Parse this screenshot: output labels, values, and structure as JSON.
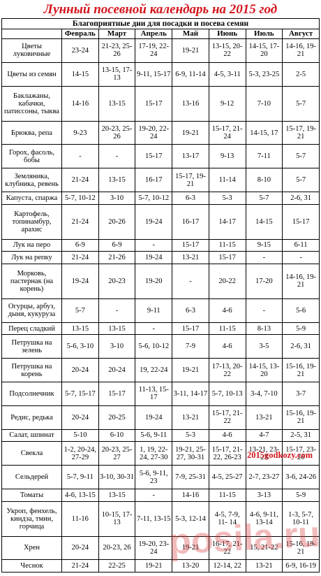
{
  "header": {
    "title": "Лунный посевной календарь на 2015 год",
    "subtitle": "Благоприятные дни для посадки и посева семян"
  },
  "table": {
    "columns": [
      "Февраль",
      "Март",
      "Апрель",
      "Май",
      "Июнь",
      "Июль",
      "Август"
    ],
    "rows": [
      [
        "Цветы луковичные",
        "23-24",
        "21-23, 25-26",
        "17-19, 22-24",
        "19-21",
        "13-15, 20-22",
        "14-15, 17-20",
        "14-16, 19-21"
      ],
      [
        "Цветы из семян",
        "14-15",
        "13-15, 17-13",
        "9-11, 15-17",
        "6-9, 11-14",
        "4-5, 3-11",
        "5-3, 23-25",
        "2-5"
      ],
      [
        "Баклажаны, кабачки, патиссоны, тыква",
        "14-16",
        "13-15",
        "15-17",
        "13-16",
        "9-12",
        "7-10",
        "5-7"
      ],
      [
        "Брюква, репа",
        "9-23",
        "20-23, 25-26",
        "19-20, 22-24",
        "19-21",
        "15-17, 21-24",
        "14-15, 17",
        "15-17, 19-21"
      ],
      [
        "Горох, фасоль, бобы",
        "-",
        "-",
        "15-17",
        "13-17",
        "9-13",
        "7-11",
        "5-7"
      ],
      [
        "Земляника, клубника, ревень",
        "21-24",
        "13-15",
        "16-17",
        "15-17, 19-21",
        "11-14",
        "8-10",
        "5-7"
      ],
      [
        "Капуста, спаржа",
        "5-7, 10-12",
        "3-10",
        "5-7, 10-12",
        "6-3",
        "5-3",
        "5-7",
        "2-6, 31"
      ],
      [
        "Картофель, топинамбур, арахис",
        "21-24",
        "20-26",
        "19-24",
        "16-17",
        "14-17",
        "14-15",
        "15-17"
      ],
      [
        "Лук на перо",
        "6-9",
        "6-9",
        "-",
        "15-17",
        "11-15",
        "9-15",
        "6-11"
      ],
      [
        "Лук на репку",
        "21-24",
        "21-26",
        "19-24",
        "13-21",
        "15-17",
        "-",
        "-"
      ],
      [
        "Морковь, пастернак (на корень)",
        "19-24",
        "20-23",
        "19-20",
        "-",
        "20-22",
        "17-20",
        "14-16, 19-21"
      ],
      [
        "Огурцы, арбуз, дыня, кукуруза",
        "5-7",
        "-",
        "9-11",
        "6-3",
        "4-6",
        "-",
        "5-6"
      ],
      [
        "Перец сладкий",
        "13-15",
        "13-15",
        "-",
        "15-17",
        "11-15",
        "8-13",
        "5-9"
      ],
      [
        "Петрушка на зелень",
        "5-6, 3-10",
        "3-10",
        "5-6, 10-12",
        "7-9",
        "4-6",
        "3-5",
        "2-6, 31"
      ],
      [
        "Петрушка на корень",
        "20-24",
        "20-24",
        "19, 22-24",
        "19-21",
        "17-13, 20-22",
        "14-15, 13-20",
        "15-16, 19-21"
      ],
      [
        "Подсолнечник",
        "5-7, 15-17",
        "15-17",
        "11-13, 15-17",
        "3-11, 14-17",
        "5-7, 10-13",
        "3-4, 7-10",
        "3-7"
      ],
      [
        "Редис, редька",
        "20-24",
        "20-25",
        "19-24",
        "13-21",
        "15-17, 21-22",
        "13-21",
        "15-16, 19-21"
      ],
      [
        "Салат, шпинат",
        "5-10",
        "6-10",
        "5-6, 9-11",
        "5-3",
        "4-6",
        "4-7",
        "2-5, 31"
      ],
      [
        "Свекла",
        "1-2, 20-24, 27-29",
        "20-23, 25-27",
        "1, 19, 22-24, 27-30",
        "19-21, 25-27, 30-31",
        "15-17, 21-22, 26-23",
        "13-21, 23-23",
        "15-17, 23-26"
      ],
      [
        "Сельдерей",
        "5-7, 9-11",
        "3-10, 30-31",
        "5-6, 9-11, 23",
        "7-9, 25-31",
        "4-5, 25-27",
        "2-7, 23-27",
        "3-6, 24-26"
      ],
      [
        "Томаты",
        "4-6, 13-15",
        "13-15",
        "-",
        "14-16",
        "11-15",
        "3-13",
        "5-9"
      ],
      [
        "Укроп, фенхель, киндза, тмин, горчица",
        "11-16",
        "10-15, 17-13",
        "7-11, 13-15",
        "5-3, 12-14",
        "4-5, 7-9, 11- 14",
        "4-6, 9-11, 13-14",
        "1-3, 5-7, 10-11"
      ],
      [
        "Хрен",
        "20-24",
        "20-23, 26",
        "19-20, 23-24",
        "19-21",
        "16-17, 21-22",
        "15, 21-22",
        "15-16, 19-21"
      ],
      [
        "Чеснок",
        "21-24",
        "22-25",
        "19-21",
        "13-20",
        "12-14, 22",
        "13-21",
        "6-9, 16-19"
      ]
    ]
  },
  "watermarks": [
    "2015godkozy.com",
    "posila.ru"
  ]
}
